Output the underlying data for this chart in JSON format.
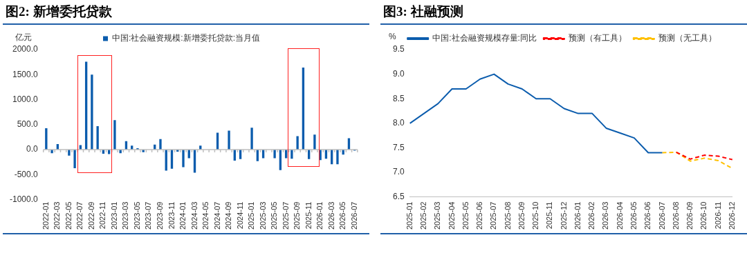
{
  "chart_data": [
    {
      "type": "bar",
      "title": "图2: 新增委托贷款",
      "ylabel": "亿元",
      "legend": "top",
      "ref_lines": [
        {
          "axis": "y",
          "value": 0,
          "color": "#bfbfbf"
        }
      ],
      "categories": [
        "2022-01",
        null,
        "2022-03",
        null,
        "2022-05",
        null,
        "2022-07",
        null,
        "2022-09",
        null,
        "2022-11",
        null,
        "2023-01",
        null,
        "2023-03",
        null,
        "2023-05",
        null,
        "2023-07",
        null,
        "2023-09",
        null,
        "2023-11",
        null,
        "2024-01",
        null,
        "2024-03",
        null,
        "2024-05",
        null,
        "2024-07",
        null,
        "2024-09",
        null,
        "2024-11",
        null,
        "2025-01",
        null,
        "2025-03",
        null,
        "2025-05",
        null,
        "2025-07",
        null,
        "2025-09",
        null,
        "2025-11",
        null,
        "2026-01",
        null,
        "2026-03",
        null,
        "2026-05",
        null,
        "2026-07"
      ],
      "series": [
        {
          "name": "中国:社会融资规模:新增委托贷款:当月值",
          "color": "#0b5cad",
          "values": [
            430,
            -70,
            110,
            null,
            -120,
            -370,
            90,
            1760,
            1500,
            470,
            -80,
            -90,
            590,
            -70,
            170,
            80,
            30,
            -50,
            0,
            100,
            210,
            -420,
            -380,
            -40,
            -350,
            -170,
            -460,
            80,
            0,
            0,
            340,
            null,
            380,
            -220,
            -190,
            null,
            440,
            -230,
            -170,
            0,
            -170,
            -410,
            -170,
            -180,
            270,
            1640,
            -190,
            300,
            -210,
            -180,
            -290,
            -290,
            -100,
            230,
            -20
          ]
        }
      ],
      "ylim": [
        -1000,
        2000
      ],
      "yticks": [
        {
          "value": -1000,
          "label": "-1000.0"
        },
        {
          "value": -500,
          "label": "-500.0"
        },
        {
          "value": 0,
          "label": "0.0"
        },
        {
          "value": 500,
          "label": "500.0"
        },
        {
          "value": 1000,
          "label": "1000.0"
        },
        {
          "value": 1500,
          "label": "1500.0"
        },
        {
          "value": 2000,
          "label": "2000.0"
        }
      ]
    },
    {
      "type": "line",
      "title": "图3: 社融预测",
      "ylabel": "%",
      "legend": "top",
      "grid": false,
      "marker": "none",
      "categories": [
        "2025-01",
        "2025-02",
        "2025-03",
        "2025-04",
        "2025-05",
        "2025-06",
        "2025-07",
        "2025-08",
        "2025-09",
        "2025-10",
        "2025-11",
        "2025-12",
        "2026-01",
        "2026-02",
        "2026-03",
        "2026-04",
        "2026-05",
        "2026-06",
        "2026-07",
        "2026-08",
        "2026-09",
        "2026-10",
        "2026-11",
        "2026-12"
      ],
      "series": [
        {
          "name": "中国:社会融资规模存量:同比",
          "color": "#0b5cad",
          "line_style": "solid",
          "values": [
            8.0,
            8.2,
            8.4,
            8.7,
            8.7,
            8.9,
            9.0,
            8.8,
            8.7,
            8.5,
            8.5,
            8.3,
            8.2,
            8.2,
            7.9,
            7.8,
            7.7,
            7.4,
            7.4,
            null,
            null,
            null,
            null,
            null
          ]
        },
        {
          "name": "预测（有工具）",
          "color": "#ff0000",
          "line_style": "dashed",
          "values": [
            null,
            null,
            null,
            null,
            null,
            null,
            null,
            null,
            null,
            null,
            null,
            null,
            null,
            null,
            null,
            null,
            null,
            null,
            null,
            7.41,
            7.27,
            7.35,
            7.33,
            7.26
          ]
        },
        {
          "name": "预测（无工具）",
          "color": "#ffc000",
          "line_style": "dashed",
          "values": [
            null,
            null,
            null,
            null,
            null,
            null,
            null,
            null,
            null,
            null,
            null,
            null,
            null,
            null,
            null,
            null,
            null,
            null,
            7.4,
            7.41,
            7.23,
            7.29,
            7.24,
            7.08
          ]
        }
      ],
      "ylim": [
        6.5,
        9.5
      ],
      "yticks": [
        6.5,
        {
          "value": 7,
          "label": "7.0"
        },
        7.5,
        {
          "value": 8,
          "label": "8.0"
        },
        8.5,
        {
          "value": 9,
          "label": "9.0"
        },
        9.5
      ]
    }
  ]
}
